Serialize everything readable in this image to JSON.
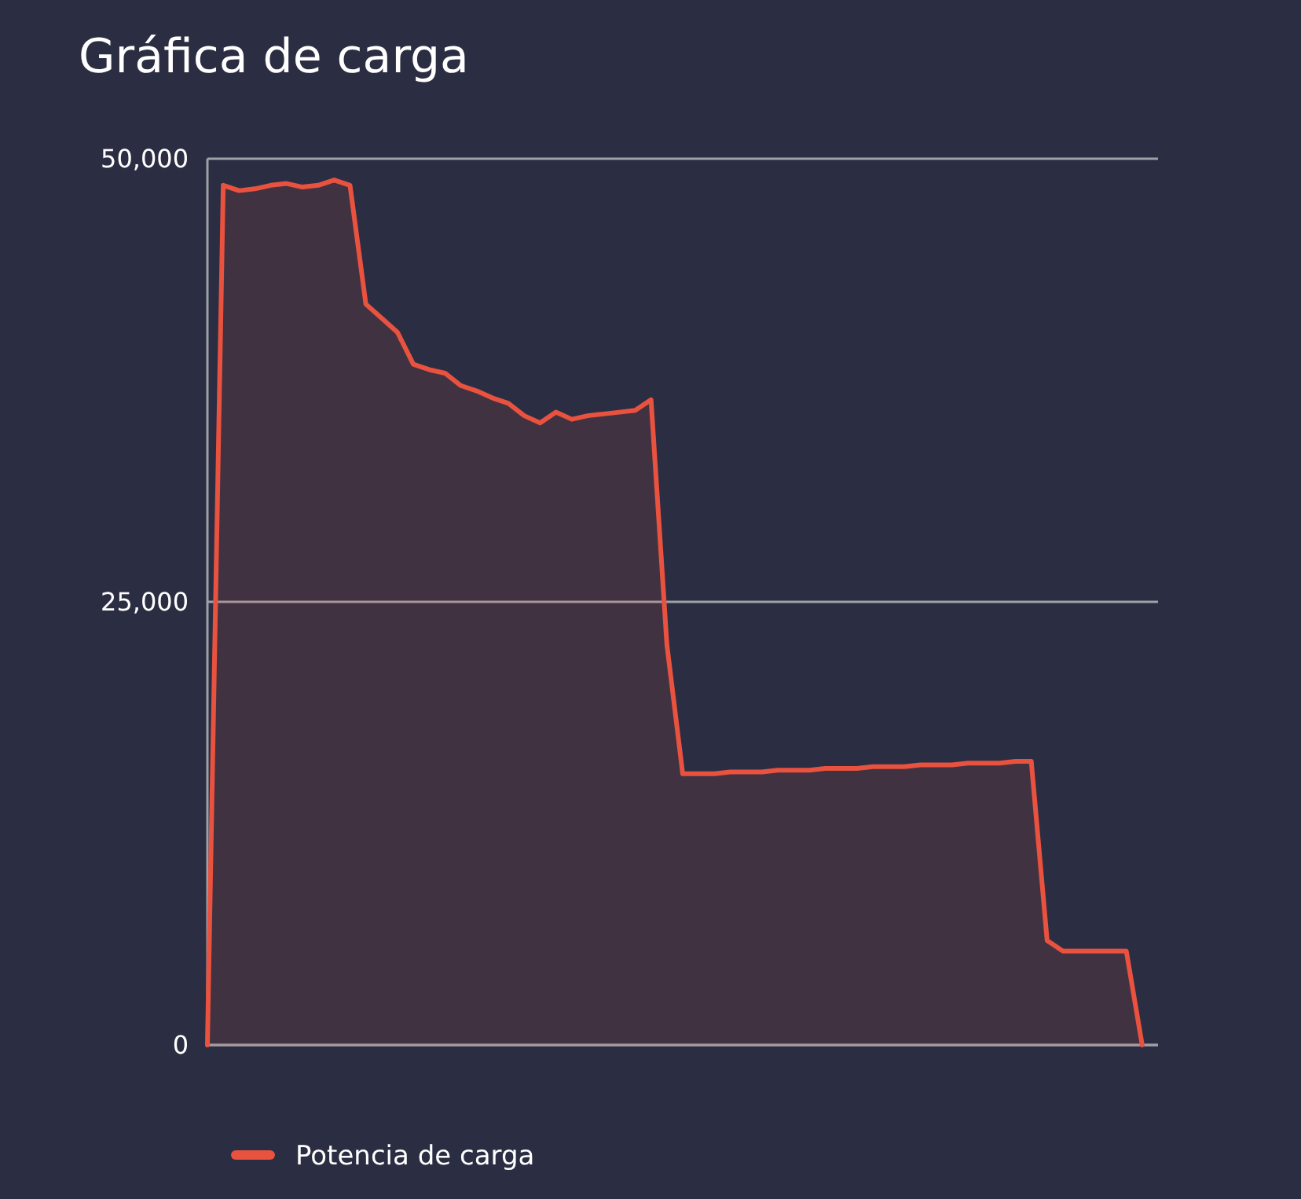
{
  "chart_data": {
    "type": "area",
    "title": "Gráfica de carga",
    "categories": [
      null,
      null,
      null,
      null,
      null,
      null,
      null,
      null,
      null,
      null,
      null,
      null,
      null,
      null,
      null,
      null,
      null,
      null,
      null,
      null,
      null,
      null,
      null,
      null,
      null,
      null,
      null,
      null,
      null,
      null,
      null,
      null,
      null,
      null,
      null,
      null,
      null,
      null,
      null,
      null,
      null,
      null,
      null,
      null,
      null,
      null,
      null,
      null,
      null,
      null,
      null,
      null,
      null,
      null,
      null,
      null,
      null,
      null,
      null,
      null
    ],
    "series": [
      {
        "name": "Potencia de carga",
        "color": "#e8523f",
        "values": [
          0,
          48500,
          48200,
          48300,
          48500,
          48600,
          48400,
          48500,
          48800,
          48500,
          41800,
          41000,
          40200,
          38400,
          38100,
          37900,
          37200,
          36900,
          36500,
          36200,
          35500,
          35100,
          35700,
          35300,
          35500,
          35600,
          35700,
          35800,
          36400,
          22600,
          15300,
          15300,
          15300,
          15400,
          15400,
          15400,
          15500,
          15500,
          15500,
          15600,
          15600,
          15600,
          15700,
          15700,
          15700,
          15800,
          15800,
          15800,
          15900,
          15900,
          15900,
          16000,
          16000,
          5900,
          5300,
          5300,
          5300,
          5300,
          5300,
          0
        ]
      }
    ],
    "ylim": [
      0,
      50000
    ],
    "yticks": [
      {
        "value": 0,
        "label": "0"
      },
      {
        "value": 25000,
        "label": "25,000"
      },
      {
        "value": 50000,
        "label": "50,000"
      }
    ],
    "grid": "y",
    "legend": "bottom",
    "tick_labels": "y"
  }
}
